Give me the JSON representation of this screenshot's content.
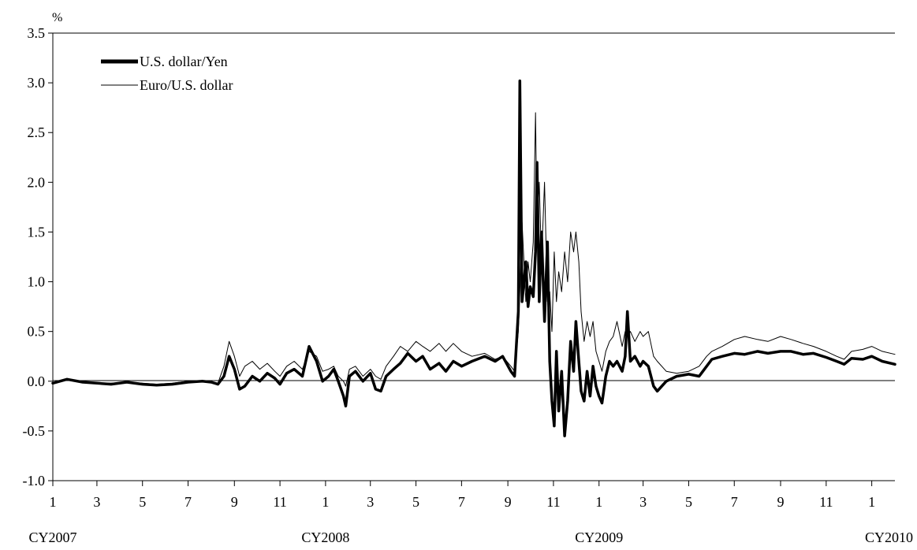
{
  "chart_data": {
    "type": "line",
    "ylabel": "%",
    "ylim": [
      -1.0,
      3.5
    ],
    "y_ticks": [
      "-1.0",
      "-0.5",
      "0.0",
      "0.5",
      "1.0",
      "1.5",
      "2.0",
      "2.5",
      "3.0",
      "3.5"
    ],
    "x_range": [
      "2007-01",
      "2010-02"
    ],
    "x_ticks": [
      {
        "t": "2007-01",
        "label": "1"
      },
      {
        "t": "2007-03",
        "label": "3"
      },
      {
        "t": "2007-05",
        "label": "5"
      },
      {
        "t": "2007-07",
        "label": "7"
      },
      {
        "t": "2007-09",
        "label": "9"
      },
      {
        "t": "2007-11",
        "label": "11"
      },
      {
        "t": "2008-01",
        "label": "1"
      },
      {
        "t": "2008-03",
        "label": "3"
      },
      {
        "t": "2008-05",
        "label": "5"
      },
      {
        "t": "2008-07",
        "label": "7"
      },
      {
        "t": "2008-09",
        "label": "9"
      },
      {
        "t": "2008-11",
        "label": "11"
      },
      {
        "t": "2009-01",
        "label": "1"
      },
      {
        "t": "2009-03",
        "label": "3"
      },
      {
        "t": "2009-05",
        "label": "5"
      },
      {
        "t": "2009-07",
        "label": "7"
      },
      {
        "t": "2009-09",
        "label": "9"
      },
      {
        "t": "2009-11",
        "label": "11"
      },
      {
        "t": "2010-01",
        "label": "1"
      }
    ],
    "year_labels": [
      {
        "t": "2007-01",
        "label": "CY2007"
      },
      {
        "t": "2008-01",
        "label": "CY2008"
      },
      {
        "t": "2009-01",
        "label": "CY2009"
      },
      {
        "t": "2010-01",
        "label": "CY2010"
      }
    ],
    "legend": {
      "position": "top-left"
    },
    "zero_line": true,
    "grid": false,
    "series": [
      {
        "name": "U.S. dollar/Yen",
        "color": "#000000",
        "style": "thick",
        "points": [
          [
            "2007-01-01",
            -0.02
          ],
          [
            "2007-01-20",
            0.02
          ],
          [
            "2007-02-10",
            -0.01
          ],
          [
            "2007-03-01",
            -0.02
          ],
          [
            "2007-03-20",
            -0.03
          ],
          [
            "2007-04-10",
            -0.01
          ],
          [
            "2007-05-01",
            -0.03
          ],
          [
            "2007-05-20",
            -0.04
          ],
          [
            "2007-06-10",
            -0.03
          ],
          [
            "2007-07-01",
            -0.01
          ],
          [
            "2007-07-20",
            0.0
          ],
          [
            "2007-08-01",
            -0.01
          ],
          [
            "2007-08-10",
            -0.03
          ],
          [
            "2007-08-18",
            0.05
          ],
          [
            "2007-08-25",
            0.25
          ],
          [
            "2007-09-01",
            0.12
          ],
          [
            "2007-09-08",
            -0.08
          ],
          [
            "2007-09-15",
            -0.05
          ],
          [
            "2007-09-25",
            0.05
          ],
          [
            "2007-10-05",
            0.0
          ],
          [
            "2007-10-15",
            0.08
          ],
          [
            "2007-10-25",
            0.03
          ],
          [
            "2007-11-01",
            -0.03
          ],
          [
            "2007-11-10",
            0.08
          ],
          [
            "2007-11-20",
            0.12
          ],
          [
            "2007-12-01",
            0.05
          ],
          [
            "2007-12-10",
            0.35
          ],
          [
            "2007-12-20",
            0.2
          ],
          [
            "2007-12-28",
            0.0
          ],
          [
            "2008-01-05",
            0.05
          ],
          [
            "2008-01-12",
            0.12
          ],
          [
            "2008-01-18",
            0.0
          ],
          [
            "2008-01-25",
            -0.15
          ],
          [
            "2008-01-28",
            -0.25
          ],
          [
            "2008-02-02",
            0.05
          ],
          [
            "2008-02-10",
            0.1
          ],
          [
            "2008-02-20",
            0.0
          ],
          [
            "2008-03-01",
            0.08
          ],
          [
            "2008-03-08",
            -0.08
          ],
          [
            "2008-03-15",
            -0.1
          ],
          [
            "2008-03-22",
            0.05
          ],
          [
            "2008-04-01",
            0.12
          ],
          [
            "2008-04-10",
            0.18
          ],
          [
            "2008-04-20",
            0.28
          ],
          [
            "2008-05-01",
            0.2
          ],
          [
            "2008-05-10",
            0.25
          ],
          [
            "2008-05-20",
            0.12
          ],
          [
            "2008-06-01",
            0.18
          ],
          [
            "2008-06-10",
            0.1
          ],
          [
            "2008-06-20",
            0.2
          ],
          [
            "2008-07-01",
            0.15
          ],
          [
            "2008-07-15",
            0.2
          ],
          [
            "2008-08-01",
            0.25
          ],
          [
            "2008-08-15",
            0.2
          ],
          [
            "2008-08-25",
            0.25
          ],
          [
            "2008-09-05",
            0.1
          ],
          [
            "2008-09-10",
            0.05
          ],
          [
            "2008-09-15",
            0.7
          ],
          [
            "2008-09-17",
            3.02
          ],
          [
            "2008-09-20",
            0.8
          ],
          [
            "2008-09-25",
            1.2
          ],
          [
            "2008-09-28",
            0.75
          ],
          [
            "2008-10-01",
            0.95
          ],
          [
            "2008-10-05",
            0.85
          ],
          [
            "2008-10-08",
            1.3
          ],
          [
            "2008-10-10",
            2.2
          ],
          [
            "2008-10-13",
            0.8
          ],
          [
            "2008-10-16",
            1.5
          ],
          [
            "2008-10-20",
            0.6
          ],
          [
            "2008-10-24",
            1.4
          ],
          [
            "2008-10-27",
            0.2
          ],
          [
            "2008-10-30",
            -0.2
          ],
          [
            "2008-11-02",
            -0.45
          ],
          [
            "2008-11-05",
            0.3
          ],
          [
            "2008-11-08",
            -0.3
          ],
          [
            "2008-11-12",
            0.1
          ],
          [
            "2008-11-16",
            -0.55
          ],
          [
            "2008-11-20",
            -0.2
          ],
          [
            "2008-11-24",
            0.4
          ],
          [
            "2008-11-28",
            0.1
          ],
          [
            "2008-12-01",
            0.6
          ],
          [
            "2008-12-05",
            0.2
          ],
          [
            "2008-12-08",
            -0.1
          ],
          [
            "2008-12-12",
            -0.2
          ],
          [
            "2008-12-16",
            0.1
          ],
          [
            "2008-12-20",
            -0.15
          ],
          [
            "2008-12-24",
            0.15
          ],
          [
            "2008-12-28",
            -0.05
          ],
          [
            "2009-01-01",
            -0.15
          ],
          [
            "2009-01-05",
            -0.22
          ],
          [
            "2009-01-10",
            0.05
          ],
          [
            "2009-01-15",
            0.2
          ],
          [
            "2009-01-20",
            0.15
          ],
          [
            "2009-01-25",
            0.2
          ],
          [
            "2009-02-01",
            0.1
          ],
          [
            "2009-02-05",
            0.25
          ],
          [
            "2009-02-08",
            0.7
          ],
          [
            "2009-02-12",
            0.2
          ],
          [
            "2009-02-18",
            0.25
          ],
          [
            "2009-02-25",
            0.15
          ],
          [
            "2009-03-01",
            0.2
          ],
          [
            "2009-03-08",
            0.15
          ],
          [
            "2009-03-15",
            -0.05
          ],
          [
            "2009-03-20",
            -0.1
          ],
          [
            "2009-04-01",
            0.0
          ],
          [
            "2009-04-15",
            0.05
          ],
          [
            "2009-05-01",
            0.07
          ],
          [
            "2009-05-15",
            0.05
          ],
          [
            "2009-05-25",
            0.15
          ],
          [
            "2009-06-01",
            0.22
          ],
          [
            "2009-06-15",
            0.25
          ],
          [
            "2009-07-01",
            0.28
          ],
          [
            "2009-07-15",
            0.27
          ],
          [
            "2009-08-01",
            0.3
          ],
          [
            "2009-08-15",
            0.28
          ],
          [
            "2009-09-01",
            0.3
          ],
          [
            "2009-09-15",
            0.3
          ],
          [
            "2009-10-01",
            0.27
          ],
          [
            "2009-10-15",
            0.28
          ],
          [
            "2009-11-01",
            0.24
          ],
          [
            "2009-11-15",
            0.2
          ],
          [
            "2009-11-25",
            0.17
          ],
          [
            "2009-12-05",
            0.23
          ],
          [
            "2009-12-20",
            0.22
          ],
          [
            "2010-01-01",
            0.25
          ],
          [
            "2010-01-15",
            0.2
          ],
          [
            "2010-02-01",
            0.17
          ]
        ]
      },
      {
        "name": "Euro/U.S. dollar",
        "color": "#000000",
        "style": "thin",
        "points": [
          [
            "2007-01-01",
            -0.02
          ],
          [
            "2007-01-20",
            0.01
          ],
          [
            "2007-02-10",
            -0.01
          ],
          [
            "2007-03-01",
            -0.02
          ],
          [
            "2007-03-20",
            -0.02
          ],
          [
            "2007-04-10",
            -0.01
          ],
          [
            "2007-05-01",
            -0.02
          ],
          [
            "2007-05-20",
            -0.03
          ],
          [
            "2007-06-10",
            -0.02
          ],
          [
            "2007-07-01",
            0.0
          ],
          [
            "2007-07-20",
            0.0
          ],
          [
            "2007-08-01",
            -0.01
          ],
          [
            "2007-08-10",
            -0.02
          ],
          [
            "2007-08-18",
            0.15
          ],
          [
            "2007-08-25",
            0.4
          ],
          [
            "2007-09-01",
            0.25
          ],
          [
            "2007-09-08",
            0.05
          ],
          [
            "2007-09-15",
            0.15
          ],
          [
            "2007-09-25",
            0.2
          ],
          [
            "2007-10-05",
            0.12
          ],
          [
            "2007-10-15",
            0.18
          ],
          [
            "2007-10-25",
            0.1
          ],
          [
            "2007-11-01",
            0.05
          ],
          [
            "2007-11-10",
            0.15
          ],
          [
            "2007-11-20",
            0.2
          ],
          [
            "2007-12-01",
            0.12
          ],
          [
            "2007-12-10",
            0.3
          ],
          [
            "2007-12-20",
            0.25
          ],
          [
            "2007-12-28",
            0.1
          ],
          [
            "2008-01-05",
            0.12
          ],
          [
            "2008-01-12",
            0.15
          ],
          [
            "2008-01-18",
            0.05
          ],
          [
            "2008-01-25",
            0.0
          ],
          [
            "2008-01-28",
            -0.05
          ],
          [
            "2008-02-02",
            0.12
          ],
          [
            "2008-02-10",
            0.15
          ],
          [
            "2008-02-20",
            0.05
          ],
          [
            "2008-03-01",
            0.12
          ],
          [
            "2008-03-08",
            0.05
          ],
          [
            "2008-03-15",
            0.02
          ],
          [
            "2008-03-22",
            0.15
          ],
          [
            "2008-04-01",
            0.25
          ],
          [
            "2008-04-10",
            0.35
          ],
          [
            "2008-04-20",
            0.3
          ],
          [
            "2008-05-01",
            0.4
          ],
          [
            "2008-05-10",
            0.35
          ],
          [
            "2008-05-20",
            0.3
          ],
          [
            "2008-06-01",
            0.38
          ],
          [
            "2008-06-10",
            0.3
          ],
          [
            "2008-06-20",
            0.38
          ],
          [
            "2008-07-01",
            0.3
          ],
          [
            "2008-07-15",
            0.25
          ],
          [
            "2008-08-01",
            0.28
          ],
          [
            "2008-08-15",
            0.22
          ],
          [
            "2008-08-25",
            0.25
          ],
          [
            "2008-09-05",
            0.15
          ],
          [
            "2008-09-10",
            0.1
          ],
          [
            "2008-09-15",
            0.5
          ],
          [
            "2008-09-17",
            0.9
          ],
          [
            "2008-09-20",
            1.6
          ],
          [
            "2008-09-25",
            0.8
          ],
          [
            "2008-09-28",
            1.2
          ],
          [
            "2008-10-01",
            1.0
          ],
          [
            "2008-10-05",
            1.4
          ],
          [
            "2008-10-08",
            2.7
          ],
          [
            "2008-10-10",
            1.5
          ],
          [
            "2008-10-13",
            2.0
          ],
          [
            "2008-10-16",
            1.2
          ],
          [
            "2008-10-20",
            2.0
          ],
          [
            "2008-10-24",
            0.8
          ],
          [
            "2008-10-27",
            0.9
          ],
          [
            "2008-10-30",
            0.5
          ],
          [
            "2008-11-02",
            1.3
          ],
          [
            "2008-11-05",
            0.8
          ],
          [
            "2008-11-08",
            1.1
          ],
          [
            "2008-11-12",
            0.9
          ],
          [
            "2008-11-16",
            1.3
          ],
          [
            "2008-11-20",
            1.0
          ],
          [
            "2008-11-24",
            1.5
          ],
          [
            "2008-11-28",
            1.3
          ],
          [
            "2008-12-01",
            1.5
          ],
          [
            "2008-12-05",
            1.2
          ],
          [
            "2008-12-08",
            0.7
          ],
          [
            "2008-12-12",
            0.4
          ],
          [
            "2008-12-16",
            0.6
          ],
          [
            "2008-12-20",
            0.45
          ],
          [
            "2008-12-24",
            0.6
          ],
          [
            "2008-12-28",
            0.3
          ],
          [
            "2009-01-01",
            0.2
          ],
          [
            "2009-01-05",
            0.1
          ],
          [
            "2009-01-10",
            0.3
          ],
          [
            "2009-01-15",
            0.4
          ],
          [
            "2009-01-20",
            0.45
          ],
          [
            "2009-01-25",
            0.6
          ],
          [
            "2009-02-01",
            0.35
          ],
          [
            "2009-02-05",
            0.5
          ],
          [
            "2009-02-08",
            0.45
          ],
          [
            "2009-02-12",
            0.5
          ],
          [
            "2009-02-18",
            0.4
          ],
          [
            "2009-02-25",
            0.5
          ],
          [
            "2009-03-01",
            0.45
          ],
          [
            "2009-03-08",
            0.5
          ],
          [
            "2009-03-15",
            0.25
          ],
          [
            "2009-03-20",
            0.2
          ],
          [
            "2009-04-01",
            0.1
          ],
          [
            "2009-04-15",
            0.08
          ],
          [
            "2009-05-01",
            0.1
          ],
          [
            "2009-05-15",
            0.15
          ],
          [
            "2009-05-25",
            0.25
          ],
          [
            "2009-06-01",
            0.3
          ],
          [
            "2009-06-15",
            0.35
          ],
          [
            "2009-07-01",
            0.42
          ],
          [
            "2009-07-15",
            0.45
          ],
          [
            "2009-08-01",
            0.42
          ],
          [
            "2009-08-15",
            0.4
          ],
          [
            "2009-09-01",
            0.45
          ],
          [
            "2009-09-15",
            0.42
          ],
          [
            "2009-10-01",
            0.38
          ],
          [
            "2009-10-15",
            0.35
          ],
          [
            "2009-11-01",
            0.3
          ],
          [
            "2009-11-15",
            0.25
          ],
          [
            "2009-11-25",
            0.22
          ],
          [
            "2009-12-05",
            0.3
          ],
          [
            "2009-12-20",
            0.32
          ],
          [
            "2010-01-01",
            0.35
          ],
          [
            "2010-01-15",
            0.3
          ],
          [
            "2010-02-01",
            0.27
          ]
        ]
      }
    ]
  }
}
